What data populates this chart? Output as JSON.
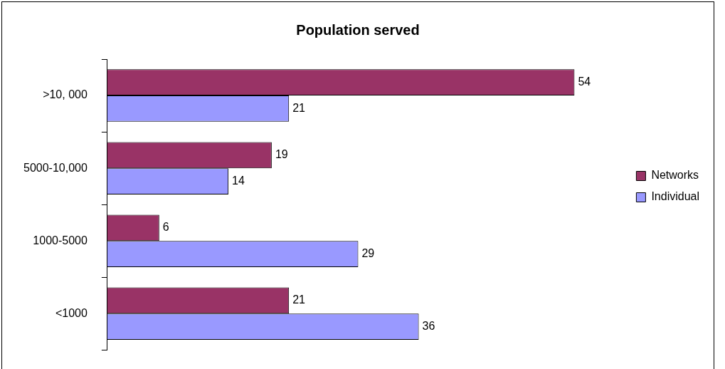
{
  "chart_data": {
    "type": "bar",
    "orientation": "horizontal",
    "title": "Population served",
    "categories": [
      ">10, 000",
      "5000-10,000",
      "1000-5000",
      "<1000"
    ],
    "series": [
      {
        "name": "Networks",
        "color": "#993366",
        "values": [
          54,
          19,
          6,
          21
        ]
      },
      {
        "name": "Individual",
        "color": "#9999ff",
        "values": [
          21,
          14,
          29,
          36
        ]
      }
    ],
    "data_labels": true,
    "legend": "right",
    "tick_labels": "y"
  }
}
